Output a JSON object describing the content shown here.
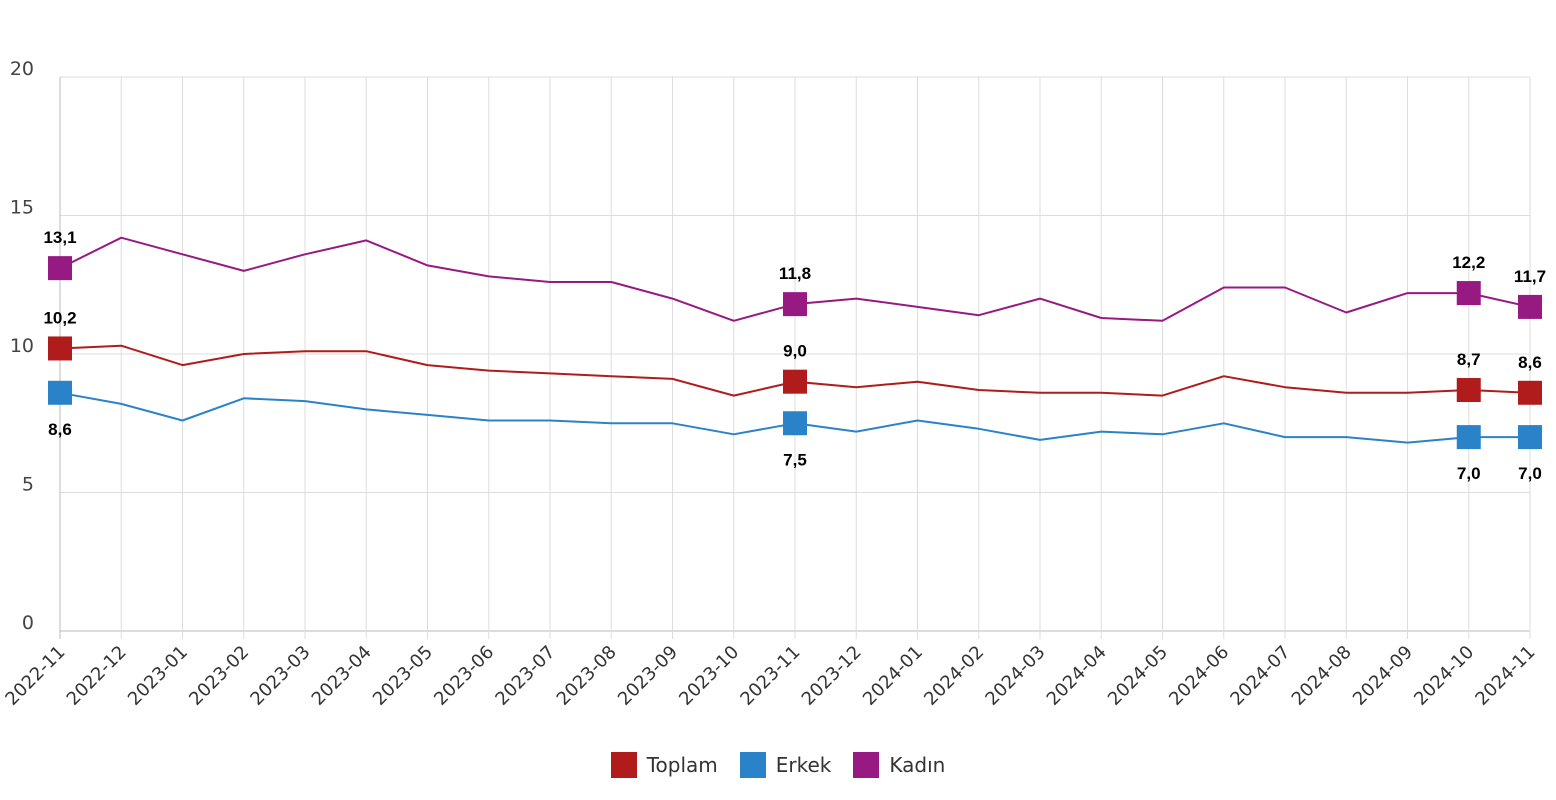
{
  "chart_data": {
    "type": "line",
    "x": [
      "2022-11",
      "2022-12",
      "2023-01",
      "2023-02",
      "2023-03",
      "2023-04",
      "2023-05",
      "2023-06",
      "2023-07",
      "2023-08",
      "2023-09",
      "2023-10",
      "2023-11",
      "2023-12",
      "2024-01",
      "2024-02",
      "2024-03",
      "2024-04",
      "2024-05",
      "2024-06",
      "2024-07",
      "2024-08",
      "2024-09",
      "2024-10",
      "2024-11"
    ],
    "ylim": [
      0,
      20
    ],
    "yticks": [
      0,
      5,
      10,
      15,
      20
    ],
    "grid": true,
    "legend_position": "bottom",
    "series": [
      {
        "name": "Toplam",
        "color": "#b01c1c",
        "values": [
          10.2,
          10.3,
          9.6,
          10.0,
          10.1,
          10.1,
          9.6,
          9.4,
          9.3,
          9.2,
          9.1,
          8.5,
          9.0,
          8.8,
          9.0,
          8.7,
          8.6,
          8.6,
          8.5,
          9.2,
          8.8,
          8.6,
          8.6,
          8.7,
          8.6
        ],
        "labels": [
          {
            "index": 0,
            "text": "10,2"
          },
          {
            "index": 12,
            "text": "9,0"
          },
          {
            "index": 23,
            "text": "8,7"
          },
          {
            "index": 24,
            "text": "8,6"
          }
        ]
      },
      {
        "name": "Erkek",
        "color": "#2a83c8",
        "values": [
          8.6,
          8.2,
          7.6,
          8.4,
          8.3,
          8.0,
          7.8,
          7.6,
          7.6,
          7.5,
          7.5,
          7.1,
          7.5,
          7.2,
          7.6,
          7.3,
          6.9,
          7.2,
          7.1,
          7.5,
          7.0,
          7.0,
          6.8,
          7.0,
          7.0
        ],
        "labels": [
          {
            "index": 0,
            "text": "8,6"
          },
          {
            "index": 12,
            "text": "7,5"
          },
          {
            "index": 23,
            "text": "7,0"
          },
          {
            "index": 24,
            "text": "7,0"
          }
        ]
      },
      {
        "name": "Kadın",
        "color": "#961a82",
        "values": [
          13.1,
          14.2,
          13.6,
          13.0,
          13.6,
          14.1,
          13.2,
          12.8,
          12.6,
          12.6,
          12.0,
          11.2,
          11.8,
          12.0,
          11.7,
          11.4,
          12.0,
          11.3,
          11.2,
          12.4,
          12.4,
          11.5,
          12.2,
          12.2,
          11.7
        ],
        "labels": [
          {
            "index": 0,
            "text": "13,1"
          },
          {
            "index": 12,
            "text": "11,8"
          },
          {
            "index": 23,
            "text": "12,2"
          },
          {
            "index": 24,
            "text": "11,7"
          }
        ]
      }
    ]
  }
}
